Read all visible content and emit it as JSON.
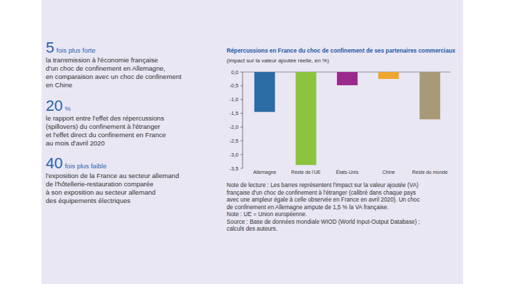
{
  "chart_data": {
    "type": "bar",
    "title": "Répercussions en France du choc de confinement de ses partenaires commerciaux",
    "subtitle": "(impact sur la valeur ajoutée réelle, en %)",
    "categories": [
      "Allemagne",
      "Reste de l'UE",
      "États-Unis",
      "Chine",
      "Reste du monde"
    ],
    "values": [
      -1.45,
      -3.38,
      -0.48,
      -0.25,
      -1.72
    ],
    "colors": [
      "#2c6ca6",
      "#8cc43f",
      "#9a2a8e",
      "#eea62e",
      "#a89a78"
    ],
    "ylim": [
      -3.5,
      0
    ],
    "yticks": [
      {
        "value": 0,
        "label": "0,0"
      },
      {
        "value": -0.5,
        "label": "-0,5"
      },
      {
        "value": -1,
        "label": "-1,0"
      },
      {
        "value": -1.5,
        "label": "-1,5"
      },
      {
        "value": -2,
        "label": "-2,0"
      },
      {
        "value": -2.5,
        "label": "-2,5"
      },
      {
        "value": -3,
        "label": "-3,0"
      },
      {
        "value": -3.5,
        "label": "-3,5"
      }
    ],
    "grid": false,
    "notes": [
      "Note de lecture : Les barres représentent l'impact sur la valeur ajoutée (VA)",
      "française d'un choc de confinement à l'étranger (calibré dans chaque pays",
      "avec une ampleur égale à celle observée en France en avril 2020). Un choc",
      "de confinement en Allemagne ampute de 1,5 % la VA française.",
      "Note : UE = Union européenne.",
      "Source : Base de données mondiale WIOD (World Input-Output Database) ;",
      "calculs des auteurs."
    ]
  },
  "key_figures": [
    {
      "number": "5",
      "unit": "fois plus forte",
      "lines": [
        "la transmission à l'économie française",
        "d'un choc de confinement en Allemagne,",
        "en comparaison avec un choc de confinement",
        "en Chine"
      ]
    },
    {
      "number": "20",
      "unit": "%",
      "lines": [
        "le rapport entre l'effet des répercussions",
        "(spillovers) du confinement à l'étranger",
        "et l'effet direct du confinement en France",
        "au mois d'avril 2020"
      ]
    },
    {
      "number": "40",
      "unit": "fois plus faible",
      "lines": [
        "l'exposition de la France au secteur allemand",
        "de l'hôtellerie-restauration comparée",
        "à son exposition au secteur allemand",
        "des équipements électriques"
      ]
    }
  ]
}
